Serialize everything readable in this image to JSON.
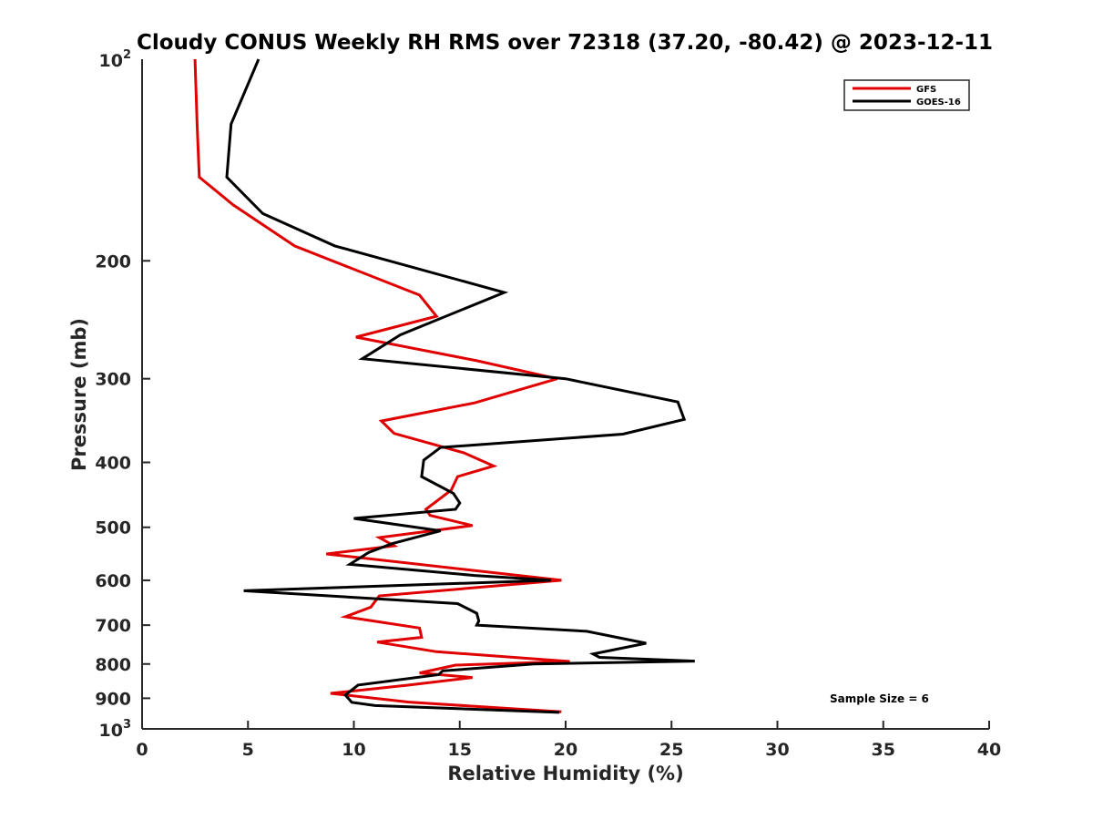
{
  "chart_data": {
    "type": "line",
    "title": "Cloudy CONUS Weekly RH RMS over 72318 (37.20, -80.42) @ 2023-12-11",
    "xlabel": "Relative Humidity (%)",
    "ylabel": "Pressure (mb)",
    "xlim": [
      0,
      40
    ],
    "ylim": [
      100,
      1000
    ],
    "yscale": "log",
    "y_reversed": true,
    "grid": false,
    "xticks": [
      0,
      5,
      10,
      15,
      20,
      25,
      30,
      35,
      40
    ],
    "xtick_labels": [
      "0",
      "5",
      "10",
      "15",
      "20",
      "25",
      "30",
      "35",
      "40"
    ],
    "yticks": [
      200,
      300,
      400,
      500,
      600,
      700,
      800,
      900
    ],
    "ytick_labels": [
      "200",
      "300",
      "400",
      "500",
      "600",
      "700",
      "800",
      "900"
    ],
    "ytick_edge_labels": [
      {
        "value": 100,
        "base": "10",
        "exp": "2"
      },
      {
        "value": 1000,
        "base": "10",
        "exp": "3"
      }
    ],
    "legend_position": "top-right",
    "annotation": "Sample Size = 6",
    "series": [
      {
        "name": "GFS",
        "color": "#e00000",
        "x": [
          2.5,
          2.6,
          2.7,
          4.3,
          7.2,
          13.1,
          13.9,
          10.1,
          15.8,
          19.6,
          15.7,
          11.3,
          11.9,
          15.2,
          16.6,
          14.9,
          14.6,
          13.4,
          13.6,
          15.6,
          11.2,
          11.9,
          8.7,
          19.8,
          11.2,
          10.8,
          9.6,
          13.1,
          13.2,
          11.1,
          13.9,
          20.2,
          14.8,
          13.1,
          15.6,
          12.6,
          8.9,
          12.6,
          19.8
        ],
        "y": [
          100,
          125,
          150,
          165,
          190,
          225,
          242,
          260,
          282,
          300,
          326,
          347,
          362,
          387,
          405,
          420,
          440,
          470,
          480,
          497,
          518,
          533,
          548,
          600,
          633,
          658,
          680,
          707,
          730,
          742,
          767,
          793,
          803,
          825,
          838,
          860,
          885,
          912,
          943
        ]
      },
      {
        "name": "GOES-16",
        "color": "#000000",
        "x": [
          5.5,
          4.2,
          4.0,
          5.7,
          9.1,
          17.1,
          12.2,
          10.4,
          20.0,
          25.3,
          25.6,
          22.7,
          14.1,
          13.3,
          13.2,
          14.7,
          15.0,
          14.8,
          10.0,
          14.1,
          11.8,
          10.7,
          9.8,
          15.7,
          19.3,
          4.8,
          14.9,
          15.8,
          15.9,
          15.8,
          21.0,
          23.8,
          21.3,
          21.6,
          26.1,
          18.5,
          14.2,
          14.0,
          10.2,
          9.6,
          9.9,
          11.0,
          19.7
        ],
        "y": [
          100,
          125,
          150,
          170,
          190,
          223,
          258,
          280,
          300,
          325,
          345,
          363,
          380,
          397,
          420,
          445,
          460,
          470,
          485,
          506,
          529,
          545,
          568,
          590,
          600,
          622,
          650,
          672,
          690,
          700,
          715,
          745,
          773,
          782,
          792,
          800,
          819,
          830,
          860,
          890,
          913,
          923,
          945
        ]
      }
    ]
  }
}
